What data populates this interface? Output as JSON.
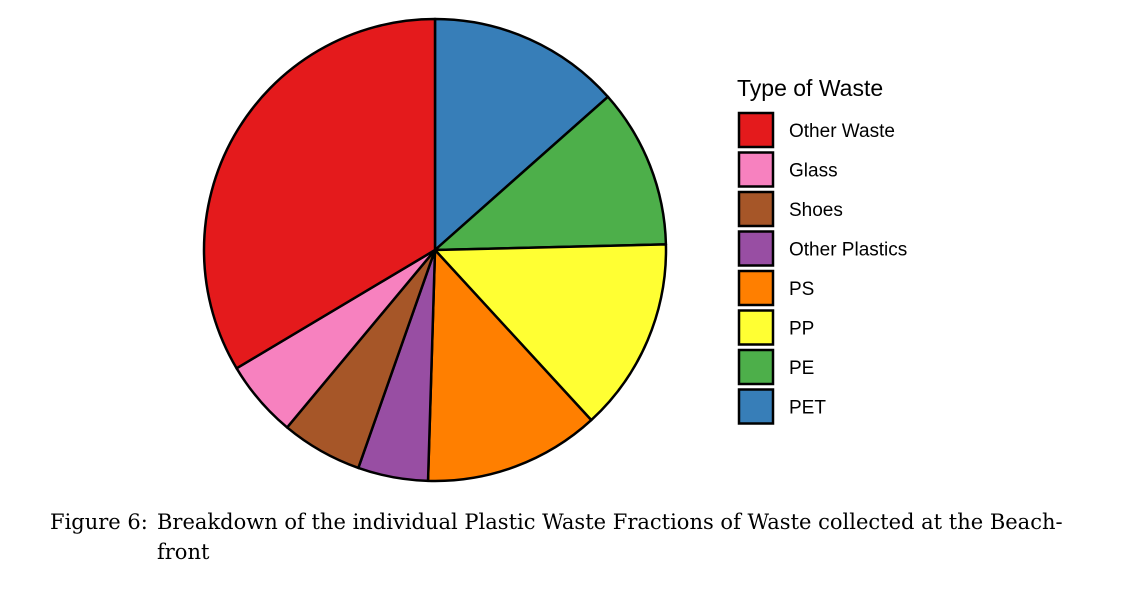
{
  "chart_data": {
    "type": "pie",
    "start_angle_deg": 0,
    "direction": "clockwise",
    "slices": [
      {
        "label": "PET",
        "value": 14,
        "color": "#377EB8"
      },
      {
        "label": "PE",
        "value": 11.6,
        "color": "#4DAF4A"
      },
      {
        "label": "PP",
        "value": 14.1,
        "color": "#FFFF33"
      },
      {
        "label": "PS",
        "value": 12.8,
        "color": "#FF7F00"
      },
      {
        "label": "Other Plastics",
        "value": 5.1,
        "color": "#984EA3"
      },
      {
        "label": "Shoes",
        "value": 5.9,
        "color": "#A65628"
      },
      {
        "label": "Glass",
        "value": 5.6,
        "color": "#F781BF"
      },
      {
        "label": "Other Waste",
        "value": 34.9,
        "color": "#E41A1C"
      }
    ],
    "legend": {
      "title": "Type of Waste",
      "placement": "right",
      "order": [
        "Other Waste",
        "Glass",
        "Shoes",
        "Other Plastics",
        "PS",
        "PP",
        "PE",
        "PET"
      ]
    }
  },
  "caption": {
    "label": "Figure 6:",
    "text": "Breakdown of the individual Plastic Waste Fractions of Waste collected at the Beach-front"
  }
}
